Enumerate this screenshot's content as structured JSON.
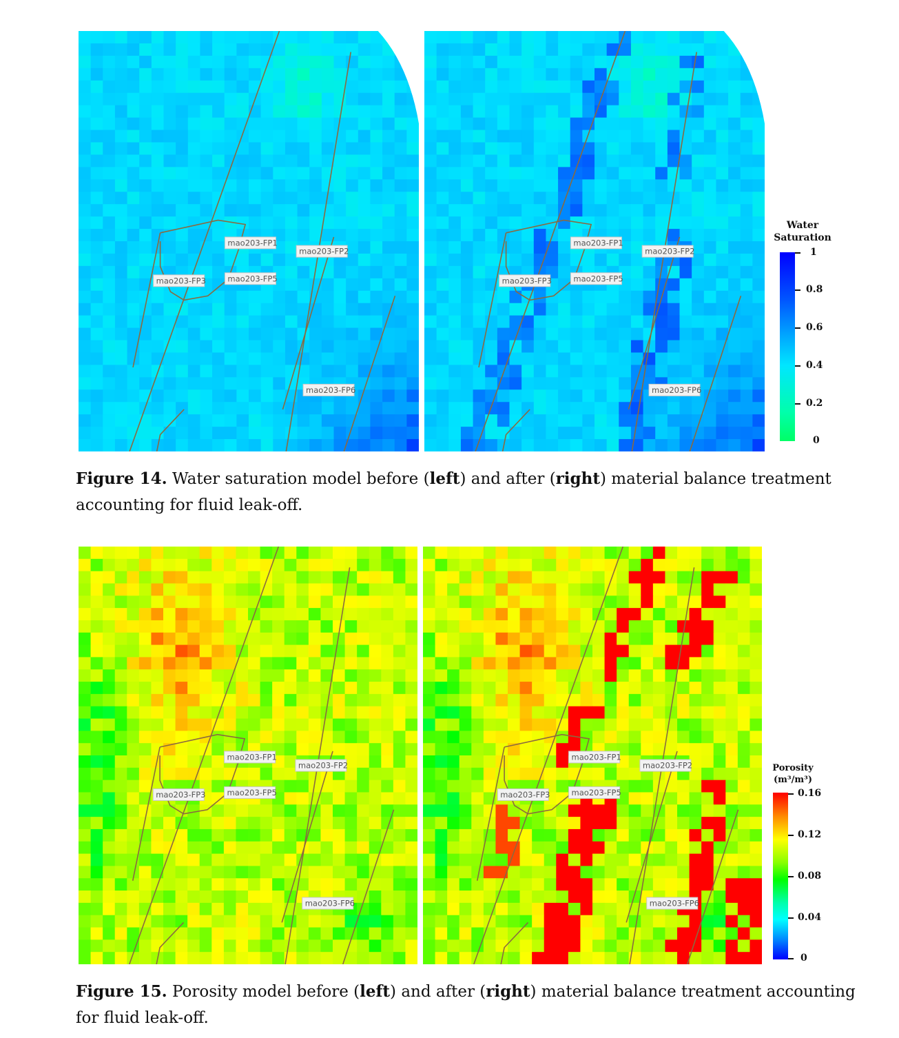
{
  "figure14": {
    "caption": {
      "label": "Figure 14.",
      "text_a": " Water saturation model before (",
      "left_word": "left",
      "text_b": ") and after (",
      "right_word": "right",
      "text_c": ") material balance treatment accounting for fluid leak-off."
    },
    "colorbar": {
      "title": "Water\nSaturation",
      "ticks": [
        "1",
        "0.8",
        "0.6",
        "0.4",
        "0.2",
        "0"
      ],
      "colors": [
        "#0000ff",
        "#00e6ff",
        "#00ff66"
      ]
    },
    "wells": [
      "mao203-FP1",
      "mao203-FP2",
      "mao203-FP3",
      "mao203-FP5",
      "mao203-FP6"
    ]
  },
  "figure15": {
    "caption": {
      "label": "Figure 15.",
      "text_a": " Porosity model before (",
      "left_word": "left",
      "text_b": ") and after (",
      "right_word": "right",
      "text_c": ") material balance treatment accounting for fluid leak-off."
    },
    "colorbar": {
      "title": "Porosity\n(m³/m³)",
      "ticks": [
        "0.16",
        "0.12",
        "0.08",
        "0.04",
        "0"
      ],
      "colors": [
        "#ff0000",
        "#ffff00",
        "#00ff00",
        "#00ffff",
        "#0000ff"
      ]
    },
    "wells": [
      "mao203-FP1",
      "mao203-FP2",
      "mao203-FP3",
      "mao203-FP5",
      "mao203-FP6"
    ]
  }
}
